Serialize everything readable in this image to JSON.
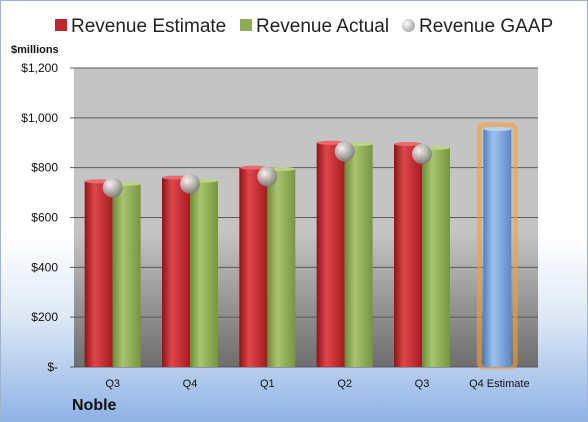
{
  "legend": {
    "estimate": "Revenue Estimate",
    "actual": "Revenue Actual",
    "gaap": "Revenue GAAP"
  },
  "unit_label": "$millions",
  "company": "Noble",
  "colors": {
    "estimate": "#c0262b",
    "actual": "#8fab57",
    "gaap": "#b5b5b5",
    "forecast": "#6f9bd3",
    "forecast_glow": "#f0a040"
  },
  "chart_data": {
    "type": "bar",
    "categories": [
      "Q3",
      "Q4",
      "Q1",
      "Q2",
      "Q3",
      "Q4 Estimate"
    ],
    "series": [
      {
        "name": "Revenue Estimate",
        "values": [
          745,
          760,
          800,
          900,
          895,
          null
        ]
      },
      {
        "name": "Revenue Actual",
        "values": [
          735,
          748,
          795,
          895,
          880,
          955
        ]
      },
      {
        "name": "Revenue GAAP",
        "values": [
          720,
          735,
          765,
          865,
          855,
          null
        ]
      }
    ],
    "ylim": [
      0,
      1200
    ],
    "yticks": [
      {
        "value": 0,
        "label": "$-"
      },
      {
        "value": 200,
        "label": "$200"
      },
      {
        "value": 400,
        "label": "$400"
      },
      {
        "value": 600,
        "label": "$600"
      },
      {
        "value": 800,
        "label": "$800"
      },
      {
        "value": 1000,
        "label": "$1,000"
      },
      {
        "value": 1200,
        "label": "$1,200"
      }
    ],
    "grid": true,
    "legend_position": "top",
    "forecast_category": "Q4 Estimate"
  }
}
